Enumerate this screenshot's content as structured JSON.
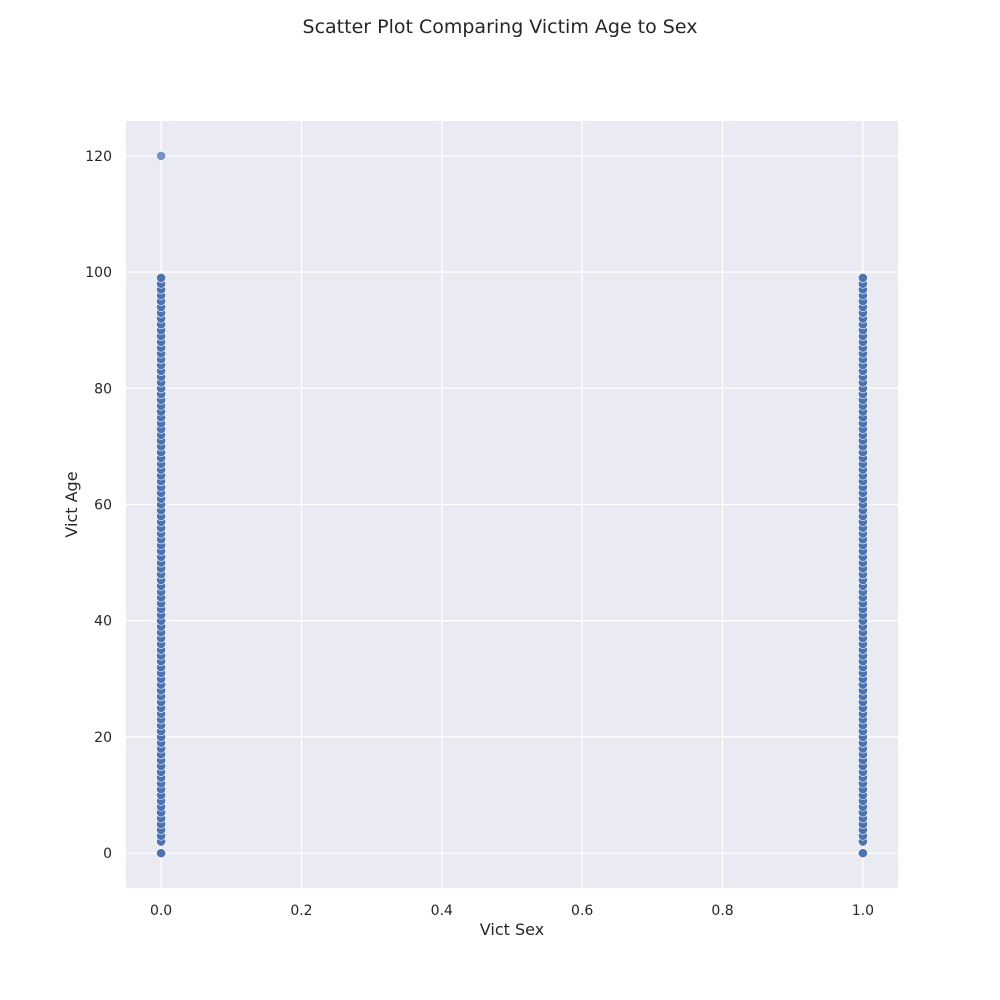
{
  "chart_data": {
    "type": "scatter",
    "title": "Scatter Plot Comparing Victim Age to Sex",
    "xlabel": "Vict Sex",
    "ylabel": "Vict Age",
    "xlim": [
      -0.05,
      1.05
    ],
    "ylim": [
      -6,
      126
    ],
    "xticks": [
      0.0,
      0.2,
      0.4,
      0.6,
      0.8,
      1.0
    ],
    "xtick_labels": [
      "0.0",
      "0.2",
      "0.4",
      "0.6",
      "0.8",
      "1.0"
    ],
    "yticks": [
      0,
      20,
      40,
      60,
      80,
      100,
      120
    ],
    "ytick_labels": [
      "0",
      "20",
      "40",
      "60",
      "80",
      "100",
      "120"
    ],
    "grid": true,
    "colors": {
      "background": "#eaeaf2",
      "grid": "#ffffff",
      "point": "#4c72b0",
      "point_edge": "#ffffff"
    },
    "series": [
      {
        "x": [
          0,
          0,
          0,
          0,
          0,
          0,
          0,
          0,
          0,
          0,
          0,
          0,
          0,
          0,
          0,
          0,
          0,
          0,
          0,
          0,
          0,
          0,
          0,
          0,
          0,
          0,
          0,
          0,
          0,
          0,
          0,
          0,
          0,
          0,
          0,
          0,
          0,
          0,
          0,
          0,
          0,
          0,
          0,
          0,
          0,
          0,
          0,
          0,
          0,
          0,
          0,
          0,
          0,
          0,
          0,
          0,
          0,
          0,
          0,
          0,
          0,
          0,
          0,
          0,
          0,
          0,
          0,
          0,
          0,
          0,
          0,
          0,
          0,
          0,
          0,
          0,
          0,
          0,
          0,
          0,
          0,
          0,
          0,
          0,
          0,
          0,
          0,
          0,
          0,
          0,
          0,
          0,
          0,
          0,
          0,
          0,
          0,
          0,
          0,
          0,
          1,
          1,
          1,
          1,
          1,
          1,
          1,
          1,
          1,
          1,
          1,
          1,
          1,
          1,
          1,
          1,
          1,
          1,
          1,
          1,
          1,
          1,
          1,
          1,
          1,
          1,
          1,
          1,
          1,
          1,
          1,
          1,
          1,
          1,
          1,
          1,
          1,
          1,
          1,
          1,
          1,
          1,
          1,
          1,
          1,
          1,
          1,
          1,
          1,
          1,
          1,
          1,
          1,
          1,
          1,
          1,
          1,
          1,
          1,
          1,
          1,
          1,
          1,
          1,
          1,
          1,
          1,
          1,
          1,
          1,
          1,
          1,
          1,
          1,
          1,
          1,
          1,
          1,
          1,
          1,
          1,
          1,
          1,
          1,
          1,
          1,
          1,
          1,
          1,
          1,
          1,
          1,
          1,
          1,
          1,
          1,
          1,
          1,
          1
        ],
        "y": [
          0,
          2,
          3,
          4,
          5,
          6,
          7,
          8,
          9,
          10,
          11,
          12,
          13,
          14,
          15,
          16,
          17,
          18,
          19,
          20,
          21,
          22,
          23,
          24,
          25,
          26,
          27,
          28,
          29,
          30,
          31,
          32,
          33,
          34,
          35,
          36,
          37,
          38,
          39,
          40,
          41,
          42,
          43,
          44,
          45,
          46,
          47,
          48,
          49,
          50,
          51,
          52,
          53,
          54,
          55,
          56,
          57,
          58,
          59,
          60,
          61,
          62,
          63,
          64,
          65,
          66,
          67,
          68,
          69,
          70,
          71,
          72,
          73,
          74,
          75,
          76,
          77,
          78,
          79,
          80,
          81,
          82,
          83,
          84,
          85,
          86,
          87,
          88,
          89,
          90,
          91,
          92,
          93,
          94,
          95,
          96,
          97,
          98,
          99,
          120,
          0,
          2,
          3,
          4,
          5,
          6,
          7,
          8,
          9,
          10,
          11,
          12,
          13,
          14,
          15,
          16,
          17,
          18,
          19,
          20,
          21,
          22,
          23,
          24,
          25,
          26,
          27,
          28,
          29,
          30,
          31,
          32,
          33,
          34,
          35,
          36,
          37,
          38,
          39,
          40,
          41,
          42,
          43,
          44,
          45,
          46,
          47,
          48,
          49,
          50,
          51,
          52,
          53,
          54,
          55,
          56,
          57,
          58,
          59,
          60,
          61,
          62,
          63,
          64,
          65,
          66,
          67,
          68,
          69,
          70,
          71,
          72,
          73,
          74,
          75,
          76,
          77,
          78,
          79,
          80,
          81,
          82,
          83,
          84,
          85,
          86,
          87,
          88,
          89,
          90,
          91,
          92,
          93,
          94,
          95,
          96,
          97,
          98,
          99
        ]
      }
    ]
  }
}
